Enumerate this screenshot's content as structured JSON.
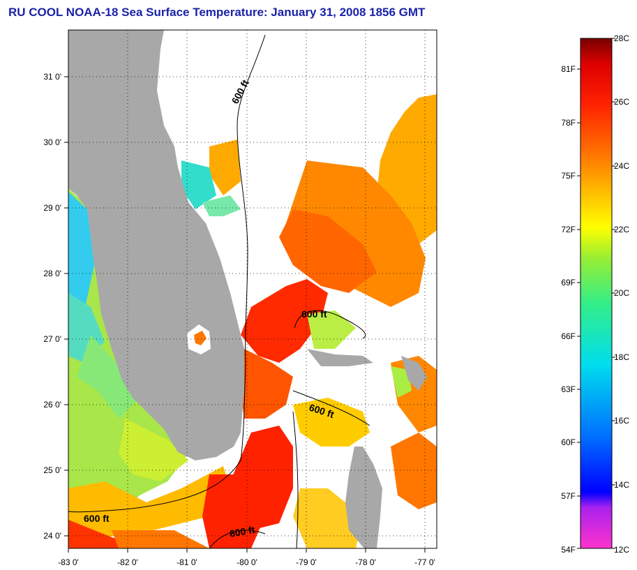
{
  "title": "RU COOL  NOAA-18  Sea Surface Temperature:  January 31, 2008 1856 GMT",
  "map": {
    "lon_range": [
      -83,
      -76.75
    ],
    "lat_range": [
      23.8,
      31.45
    ],
    "lat_ticks": [
      "24 0'",
      "25 0'",
      "26 0'",
      "27 0'",
      "28 0'",
      "29 0'",
      "30 0'",
      "31 0'"
    ],
    "lon_ticks": [
      "-83 0'",
      "-82 0'",
      "-81 0'",
      "-80 0'",
      "-79 0'",
      "-78 0'",
      "-77 0'"
    ],
    "grid": "dotted",
    "land_color": "#a8a8a8",
    "contour_labels": [
      "600 ft",
      "600 ft",
      "600 ft",
      "600 ft",
      "600 ft"
    ]
  },
  "colorbar": {
    "celsius_labels": [
      "28C",
      "26C",
      "24C",
      "22C",
      "20C",
      "18C",
      "16C",
      "14C",
      "12C"
    ],
    "fahrenheit_labels": [
      "81F",
      "78F",
      "75F",
      "72F",
      "69F",
      "66F",
      "63F",
      "60F",
      "57F",
      "54F"
    ],
    "colors": [
      "#ff33cc",
      "#aa22ee",
      "#0000ff",
      "#0070ff",
      "#00ddee",
      "#33ee88",
      "#99ee33",
      "#ffff00",
      "#ffbb00",
      "#ff7700",
      "#ff2200",
      "#dd0000",
      "#770000"
    ]
  }
}
